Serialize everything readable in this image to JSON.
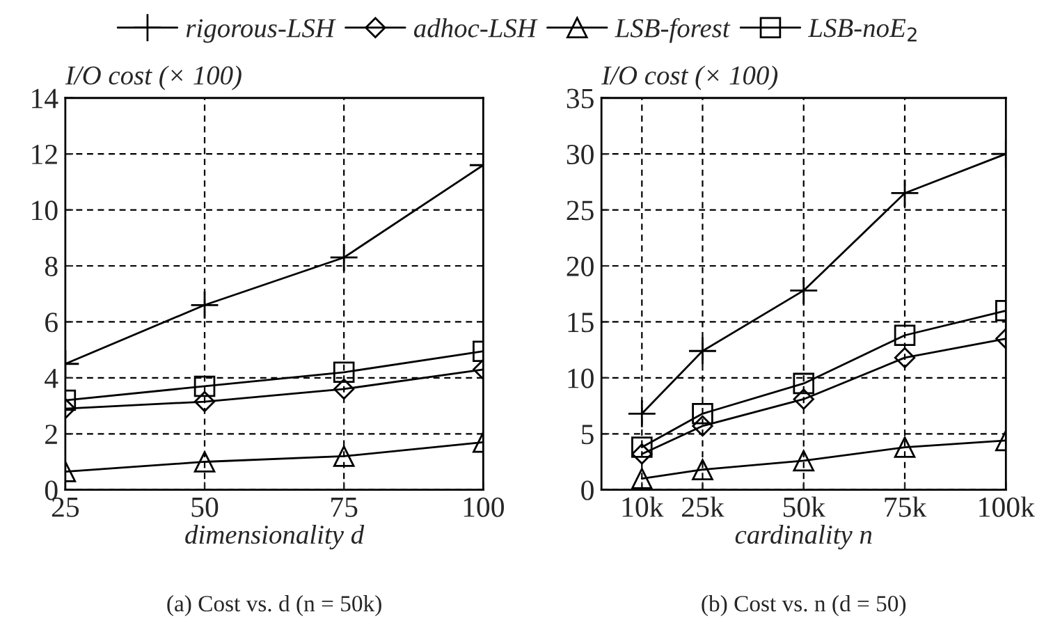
{
  "chart_data": [
    {
      "type": "line",
      "title": "(a) Cost vs. d (n = 50k)",
      "xlabel": "dimensionality d",
      "ylabel": "I/O cost (× 100)",
      "x": [
        25,
        50,
        75,
        100
      ],
      "xlim": [
        25,
        100
      ],
      "xticks": [
        25,
        50,
        75,
        100
      ],
      "ylim": [
        0,
        14
      ],
      "yticks": [
        0,
        2,
        4,
        6,
        8,
        10,
        12,
        14
      ],
      "grid": true,
      "legend": "top",
      "line_style": "solid",
      "series": [
        {
          "name": "rigorous-LSH",
          "color": "#000000",
          "marker": "cross",
          "values": [
            4.5,
            6.6,
            8.3,
            11.6
          ]
        },
        {
          "name": "adhoc-LSH",
          "color": "#000000",
          "marker": "diamond",
          "values": [
            2.9,
            3.15,
            3.6,
            4.3
          ]
        },
        {
          "name": "LSB-forest",
          "color": "#000000",
          "marker": "triangle",
          "values": [
            0.65,
            1.0,
            1.2,
            1.7
          ]
        },
        {
          "name": "LSB-noE$_{2}$",
          "color": "#000000",
          "marker": "square",
          "values": [
            3.2,
            3.7,
            4.2,
            4.95
          ]
        }
      ]
    },
    {
      "type": "line",
      "title": "(b) Cost vs. n (d = 50)",
      "xlabel": "cardinality n",
      "ylabel": "I/O cost (× 100)",
      "x": [
        10,
        25,
        50,
        75,
        100
      ],
      "xlim": [
        0,
        100
      ],
      "xticks": [
        {
          "value": 10,
          "label": "10k"
        },
        {
          "value": 25,
          "label": "25k"
        },
        {
          "value": 50,
          "label": "50k"
        },
        {
          "value": 75,
          "label": "75k"
        },
        {
          "value": 100,
          "label": "100k"
        }
      ],
      "ylim": [
        0,
        35
      ],
      "yticks": [
        0,
        5,
        10,
        15,
        20,
        25,
        30,
        35
      ],
      "grid": true,
      "line_style": "solid",
      "series": [
        {
          "color": "#000000",
          "marker": "cross",
          "values": [
            6.8,
            12.4,
            17.8,
            26.5,
            30
          ]
        },
        {
          "color": "#000000",
          "marker": "diamond",
          "values": [
            3.2,
            5.7,
            8.1,
            11.8,
            13.5
          ]
        },
        {
          "color": "#000000",
          "marker": "triangle",
          "values": [
            1.0,
            1.8,
            2.6,
            3.8,
            4.4
          ]
        },
        {
          "color": "#000000",
          "marker": "square",
          "values": [
            3.8,
            6.8,
            9.5,
            13.8,
            16
          ]
        }
      ]
    }
  ]
}
